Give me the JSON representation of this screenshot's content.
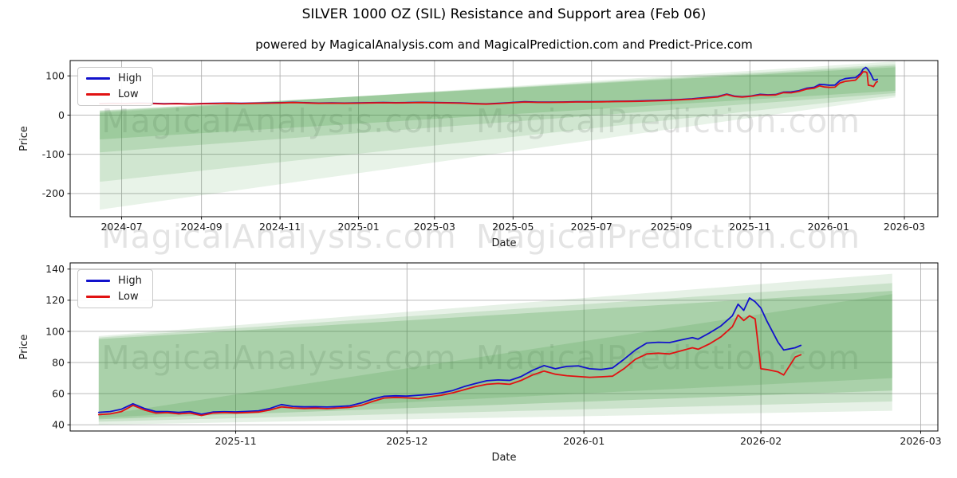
{
  "figure": {
    "title": "SILVER 1000 OZ (SIL) Resistance and Support area (Feb 06)",
    "subtitle": "powered by MagicalAnalysis.com and MagicalPrediction.com and Predict-Price.com",
    "watermark_left": "MagicalAnalysis.com",
    "watermark_right": "MagicalPrediction.com",
    "colors": {
      "high_line": "#1212cc",
      "low_line": "#e11212",
      "band_green": "#2f8f2f",
      "grid": "#b0b0b0",
      "axis": "#000000",
      "tick_text": "#1a1a1a"
    }
  },
  "chart_data": [
    {
      "type": "line",
      "title": "",
      "xlabel": "Date",
      "ylabel": "Price",
      "grid": true,
      "legend_position": "upper-left",
      "legend": [
        "High",
        "Low"
      ],
      "xlim": [
        "2024-05-22",
        "2026-03-27"
      ],
      "ylim": [
        -259,
        139
      ],
      "xticks": [
        {
          "date": "2024-07-01",
          "label": "2024-07"
        },
        {
          "date": "2024-09-01",
          "label": "2024-09"
        },
        {
          "date": "2024-11-01",
          "label": "2024-11"
        },
        {
          "date": "2025-01-01",
          "label": "2025-01"
        },
        {
          "date": "2025-03-01",
          "label": "2025-03"
        },
        {
          "date": "2025-05-01",
          "label": "2025-05"
        },
        {
          "date": "2025-07-01",
          "label": "2025-07"
        },
        {
          "date": "2025-09-01",
          "label": "2025-09"
        },
        {
          "date": "2025-11-01",
          "label": "2025-11"
        },
        {
          "date": "2026-01-01",
          "label": "2026-01"
        },
        {
          "date": "2026-03-01",
          "label": "2026-03"
        }
      ],
      "yticks": [
        -200,
        -100,
        0,
        100
      ],
      "dates": [
        "2024-06-14",
        "2024-06-24",
        "2024-07-04",
        "2024-07-14",
        "2024-07-24",
        "2024-08-03",
        "2024-08-13",
        "2024-08-23",
        "2024-09-02",
        "2024-09-12",
        "2024-09-22",
        "2024-10-02",
        "2024-10-12",
        "2024-10-22",
        "2024-11-01",
        "2024-11-11",
        "2024-11-21",
        "2024-12-01",
        "2024-12-11",
        "2024-12-21",
        "2024-12-31",
        "2025-01-10",
        "2025-01-20",
        "2025-01-30",
        "2025-02-09",
        "2025-02-19",
        "2025-03-01",
        "2025-03-11",
        "2025-03-21",
        "2025-03-31",
        "2025-04-10",
        "2025-04-20",
        "2025-04-30",
        "2025-05-10",
        "2025-05-20",
        "2025-05-30",
        "2025-06-09",
        "2025-06-19",
        "2025-06-29",
        "2025-07-09",
        "2025-07-19",
        "2025-07-29",
        "2025-08-08",
        "2025-08-18",
        "2025-08-28",
        "2025-09-07",
        "2025-09-17",
        "2025-09-27",
        "2025-10-07",
        "2025-10-14",
        "2025-10-20",
        "2025-10-26",
        "2025-11-01",
        "2025-11-09",
        "2025-11-15",
        "2025-11-21",
        "2025-11-27",
        "2025-12-03",
        "2025-12-09",
        "2025-12-15",
        "2025-12-21",
        "2025-12-25",
        "2025-12-29",
        "2026-01-02",
        "2026-01-06",
        "2026-01-10",
        "2026-01-14",
        "2026-01-18",
        "2026-01-22",
        "2026-01-26",
        "2026-01-28",
        "2026-01-30",
        "2026-01-31",
        "2026-02-01",
        "2026-02-03",
        "2026-02-05",
        "2026-02-07",
        "2026-02-08"
      ],
      "series": [
        {
          "name": "High",
          "color": "#1212cc",
          "values": [
            29.5,
            30,
            29.5,
            30.5,
            30,
            29,
            29.5,
            28.5,
            29.5,
            30,
            30.5,
            30,
            30.5,
            31,
            31.5,
            32.5,
            31.5,
            30.5,
            31,
            30.5,
            31,
            31.5,
            32,
            31.5,
            32,
            32.5,
            32,
            31.5,
            31,
            29.5,
            28.5,
            30,
            32,
            34,
            33,
            33,
            33.5,
            34,
            34,
            34.5,
            35,
            35.5,
            36,
            37,
            38,
            39.5,
            41.5,
            44.5,
            47.5,
            53.5,
            48.5,
            46.8,
            48.3,
            53,
            51.6,
            52.2,
            58.3,
            59,
            62,
            68.3,
            71,
            78,
            77.5,
            76,
            76.5,
            88,
            93,
            94.5,
            95.5,
            106,
            117.5,
            121.5,
            119,
            115,
            104,
            90,
            89.5,
            91
          ]
        },
        {
          "name": "Low",
          "color": "#e11212",
          "values": [
            28.9,
            29.4,
            28.9,
            29.9,
            29.4,
            28.4,
            28.9,
            27.9,
            28.9,
            29.4,
            29.9,
            29.4,
            29.9,
            30.4,
            30.9,
            31.9,
            30.9,
            29.9,
            30.4,
            29.9,
            30.4,
            30.9,
            31.4,
            30.9,
            31.4,
            31.9,
            31.4,
            30.9,
            30.4,
            28.9,
            27.9,
            29.4,
            31.4,
            33.2,
            32.4,
            32.4,
            32.9,
            33.4,
            33.4,
            33.9,
            34.4,
            34.9,
            35.3,
            36.3,
            37.2,
            38.7,
            40.5,
            43.3,
            46.2,
            52.5,
            47.5,
            46,
            47.6,
            51.5,
            50.7,
            51.2,
            57.2,
            56.8,
            60.5,
            66,
            68.5,
            74.5,
            71.5,
            70.5,
            71.2,
            82,
            86,
            87.5,
            89,
            102,
            110.5,
            110,
            108,
            76,
            75,
            72.5,
            83.5,
            85
          ]
        }
      ],
      "bands": {
        "color": "#2f8f2f",
        "start": "2024-06-14",
        "end": "2026-02-22",
        "wedges": [
          {
            "left": [
              -241,
              5
            ],
            "right": [
              45,
              137
            ],
            "alpha": 0.11
          },
          {
            "left": [
              -170,
              8
            ],
            "right": [
              50,
              130
            ],
            "alpha": 0.13
          },
          {
            "left": [
              -95,
              10
            ],
            "right": [
              56,
              126
            ],
            "alpha": 0.16
          },
          {
            "left": [
              -62,
              12
            ],
            "right": [
              62,
              122
            ],
            "alpha": 0.18
          }
        ]
      }
    },
    {
      "type": "line",
      "title": "",
      "xlabel": "Date",
      "ylabel": "Price",
      "grid": true,
      "legend_position": "upper-left",
      "legend": [
        "High",
        "Low"
      ],
      "xlim": [
        "2025-10-03",
        "2026-03-04"
      ],
      "ylim": [
        36,
        144
      ],
      "xticks": [
        {
          "date": "2025-11-01",
          "label": "2025-11"
        },
        {
          "date": "2025-12-01",
          "label": "2025-12"
        },
        {
          "date": "2026-01-01",
          "label": "2026-01"
        },
        {
          "date": "2026-02-01",
          "label": "2026-02"
        },
        {
          "date": "2026-03-01",
          "label": "2026-03"
        }
      ],
      "yticks": [
        40,
        60,
        80,
        100,
        120,
        140
      ],
      "dates": [
        "2025-10-08",
        "2025-10-10",
        "2025-10-12",
        "2025-10-14",
        "2025-10-16",
        "2025-10-18",
        "2025-10-20",
        "2025-10-22",
        "2025-10-24",
        "2025-10-26",
        "2025-10-28",
        "2025-10-30",
        "2025-11-01",
        "2025-11-03",
        "2025-11-05",
        "2025-11-07",
        "2025-11-09",
        "2025-11-11",
        "2025-11-13",
        "2025-11-15",
        "2025-11-17",
        "2025-11-19",
        "2025-11-21",
        "2025-11-23",
        "2025-11-25",
        "2025-11-27",
        "2025-11-29",
        "2025-12-01",
        "2025-12-03",
        "2025-12-05",
        "2025-12-07",
        "2025-12-09",
        "2025-12-11",
        "2025-12-13",
        "2025-12-15",
        "2025-12-17",
        "2025-12-19",
        "2025-12-21",
        "2025-12-23",
        "2025-12-25",
        "2025-12-27",
        "2025-12-29",
        "2025-12-31",
        "2026-01-02",
        "2026-01-04",
        "2026-01-06",
        "2026-01-08",
        "2026-01-10",
        "2026-01-12",
        "2026-01-14",
        "2026-01-16",
        "2026-01-18",
        "2026-01-20",
        "2026-01-21",
        "2026-01-23",
        "2026-01-25",
        "2026-01-27",
        "2026-01-28",
        "2026-01-29",
        "2026-01-30",
        "2026-01-31",
        "2026-02-01",
        "2026-02-02",
        "2026-02-04",
        "2026-02-05",
        "2026-02-07",
        "2026-02-08"
      ],
      "series": [
        {
          "name": "High",
          "color": "#1212cc",
          "values": [
            48,
            48.5,
            50,
            53.5,
            50.5,
            48.5,
            48.5,
            48,
            48.5,
            46.8,
            48.2,
            48.4,
            48.3,
            48.6,
            49,
            50.5,
            53,
            51.8,
            51.5,
            51.6,
            51.4,
            51.7,
            52.2,
            54,
            56.5,
            58.3,
            58.6,
            58.4,
            59,
            59.5,
            60.5,
            62,
            64.5,
            66.5,
            68.3,
            68.8,
            68.5,
            71,
            75,
            78,
            76,
            77.5,
            77.8,
            76,
            75.5,
            76.5,
            82,
            88,
            92.5,
            93,
            92.8,
            94.5,
            96,
            95,
            99,
            103.5,
            110,
            117.5,
            113.5,
            121.5,
            119,
            115,
            107,
            93,
            88,
            89.5,
            91
          ]
        },
        {
          "name": "Low",
          "color": "#e11212",
          "values": [
            46.5,
            47,
            48.5,
            52.5,
            49.5,
            47.5,
            47.8,
            47,
            47.5,
            46,
            47.5,
            47.8,
            47.6,
            47.9,
            48.2,
            49.5,
            51.5,
            50.8,
            50.5,
            50.7,
            50.4,
            50.8,
            51.2,
            52.5,
            55,
            57.2,
            57.6,
            57.3,
            56.8,
            58,
            59,
            60.5,
            62.5,
            64.5,
            66,
            66.5,
            66,
            68.5,
            72,
            74.5,
            72.5,
            71.5,
            71,
            70.5,
            70.8,
            71.2,
            76,
            82,
            85.5,
            86,
            85.5,
            87.5,
            89.5,
            88.5,
            92,
            96.5,
            103,
            110.5,
            107,
            110,
            108,
            76,
            75.5,
            74,
            72,
            83.5,
            85
          ]
        }
      ],
      "bands": {
        "color": "#2f8f2f",
        "start": "2025-10-08",
        "end": "2026-02-24",
        "wedges": [
          {
            "left": [
              40,
              97
            ],
            "right": [
              49,
              137
            ],
            "alpha": 0.12
          },
          {
            "left": [
              42,
              96
            ],
            "right": [
              55,
              131
            ],
            "alpha": 0.15
          },
          {
            "left": [
              43.5,
              95
            ],
            "right": [
              62,
              126
            ],
            "alpha": 0.2
          },
          {
            "left": [
              44.5,
              46
            ],
            "right": [
              70,
              124
            ],
            "alpha": 0.16
          }
        ]
      }
    }
  ]
}
